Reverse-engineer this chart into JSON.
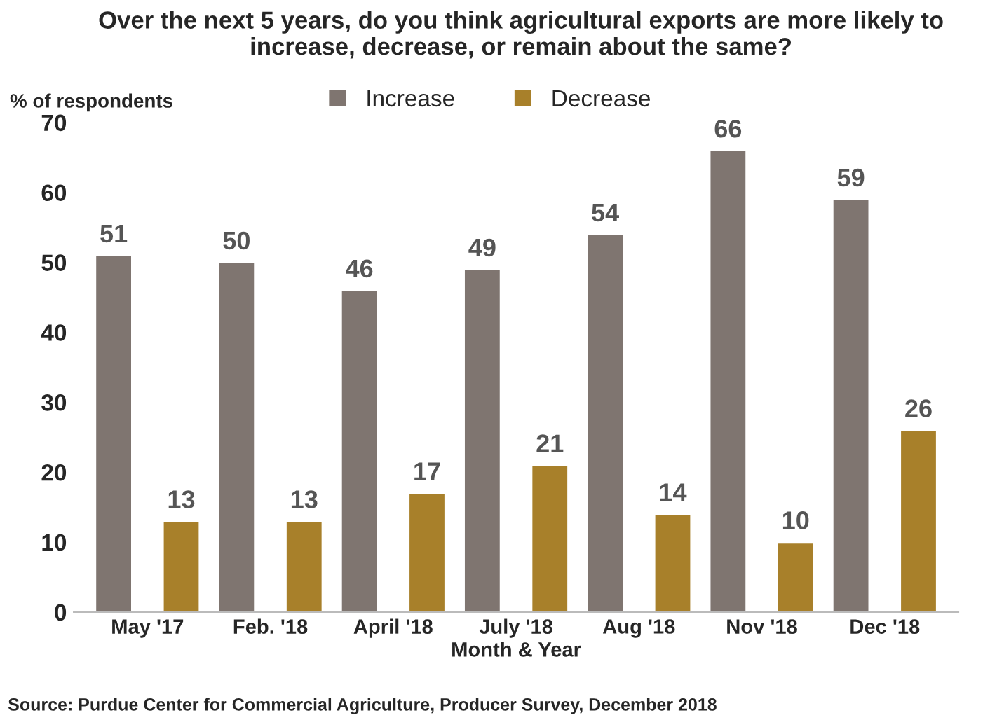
{
  "chart_data": {
    "type": "bar",
    "title": "Over the next 5 years, do you think agricultural exports are more likely to increase, decrease, or remain about the same?",
    "categories": [
      "May '17",
      "Feb. '18",
      "April '18",
      "July '18",
      "Aug '18",
      "Nov '18",
      "Dec '18"
    ],
    "series": [
      {
        "name": "Increase",
        "color": "#7f7570",
        "values": [
          51,
          50,
          46,
          49,
          54,
          66,
          59
        ]
      },
      {
        "name": "Decrease",
        "color": "#a8802a",
        "values": [
          13,
          13,
          17,
          21,
          14,
          10,
          26
        ]
      }
    ],
    "ylim": [
      0,
      70
    ],
    "yticks": [
      0,
      10,
      20,
      30,
      40,
      50,
      60,
      70
    ],
    "ylabel": "% of respondents",
    "xlabel": "Month & Year",
    "data_labels": true,
    "legend": "top",
    "grid": false,
    "annotations": [
      "Source: Purdue Center for Commercial Agriculture, Producer Survey, December 2018"
    ]
  }
}
